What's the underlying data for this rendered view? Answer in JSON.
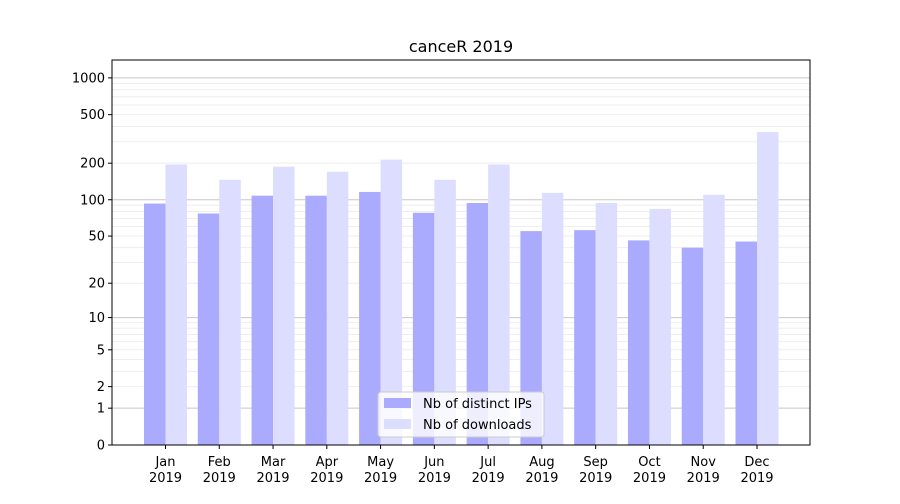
{
  "chart_data": {
    "type": "bar",
    "title": "canceR 2019",
    "xlabel": "",
    "ylabel": "",
    "yscale": "log1p",
    "ylim": [
      0,
      1400
    ],
    "yticks": [
      0,
      1,
      2,
      5,
      10,
      20,
      50,
      100,
      200,
      500,
      1000
    ],
    "ytick_labels": [
      "0",
      "1",
      "2",
      "5",
      "10",
      "20",
      "50",
      "100",
      "200",
      "500",
      "1000"
    ],
    "grid": true,
    "legend_position": "bottom-center",
    "categories": [
      "Jan\n2019",
      "Feb\n2019",
      "Mar\n2019",
      "Apr\n2019",
      "May\n2019",
      "Jun\n2019",
      "Jul\n2019",
      "Aug\n2019",
      "Sep\n2019",
      "Oct\n2019",
      "Nov\n2019",
      "Dec\n2019"
    ],
    "category_months": [
      "Jan",
      "Feb",
      "Mar",
      "Apr",
      "May",
      "Jun",
      "Jul",
      "Aug",
      "Sep",
      "Oct",
      "Nov",
      "Dec"
    ],
    "category_year": "2019",
    "series": [
      {
        "name": "Nb of distinct IPs",
        "color": "#aaaaff",
        "values": [
          93,
          77,
          108,
          108,
          116,
          78,
          94,
          55,
          56,
          46,
          40,
          45
        ]
      },
      {
        "name": "Nb of downloads",
        "color": "#ddddff",
        "values": [
          195,
          146,
          187,
          170,
          214,
          146,
          195,
          114,
          94,
          84,
          110,
          360
        ]
      }
    ]
  }
}
